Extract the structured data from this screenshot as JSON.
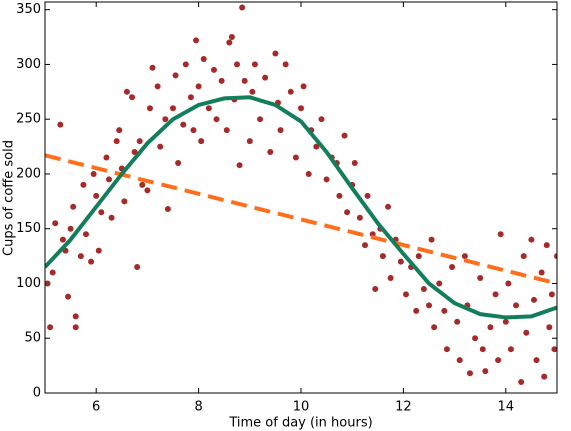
{
  "chart_data": {
    "type": "scatter",
    "xlabel": "Time of day (in hours)",
    "ylabel": "Cups of coffe sold",
    "xlim": [
      5,
      15
    ],
    "ylim": [
      0,
      357
    ],
    "xticks": [
      6,
      8,
      10,
      12,
      14
    ],
    "yticks": [
      0,
      50,
      100,
      150,
      200,
      250,
      300,
      350
    ],
    "series": [
      {
        "type": "scatter",
        "color": "#a52a2a",
        "x": [
          5.05,
          5.1,
          5.15,
          5.2,
          5.3,
          5.35,
          5.4,
          5.45,
          5.5,
          5.55,
          5.6,
          5.6,
          5.7,
          5.75,
          5.8,
          5.9,
          5.95,
          6.0,
          6.05,
          6.1,
          6.2,
          6.25,
          6.3,
          6.4,
          6.45,
          6.5,
          6.55,
          6.6,
          6.7,
          6.75,
          6.8,
          6.85,
          6.9,
          7.0,
          7.05,
          7.1,
          7.2,
          7.25,
          7.35,
          7.4,
          7.5,
          7.55,
          7.6,
          7.7,
          7.75,
          7.85,
          7.9,
          7.95,
          8.0,
          8.05,
          8.1,
          8.2,
          8.3,
          8.35,
          8.45,
          8.55,
          8.6,
          8.65,
          8.7,
          8.75,
          8.8,
          8.85,
          8.9,
          9.0,
          9.05,
          9.1,
          9.2,
          9.3,
          9.4,
          9.5,
          9.55,
          9.6,
          9.7,
          9.8,
          9.9,
          10.0,
          10.05,
          10.15,
          10.2,
          10.3,
          10.4,
          10.5,
          10.6,
          10.7,
          10.75,
          10.85,
          10.9,
          11.0,
          11.05,
          11.15,
          11.25,
          11.3,
          11.4,
          11.45,
          11.55,
          11.6,
          11.7,
          11.75,
          11.85,
          11.95,
          12.05,
          12.15,
          12.25,
          12.3,
          12.4,
          12.5,
          12.55,
          12.6,
          12.7,
          12.8,
          12.85,
          12.95,
          13.05,
          13.1,
          13.2,
          13.25,
          13.3,
          13.4,
          13.5,
          13.55,
          13.6,
          13.7,
          13.8,
          13.85,
          13.9,
          14.0,
          14.05,
          14.1,
          14.2,
          14.3,
          14.35,
          14.4,
          14.5,
          14.55,
          14.6,
          14.7,
          14.75,
          14.8,
          14.85,
          14.9,
          14.95,
          15.0
        ],
        "values": [
          100,
          60,
          110,
          155,
          245,
          140,
          130,
          88,
          150,
          170,
          70,
          60,
          125,
          190,
          145,
          120,
          200,
          180,
          130,
          165,
          215,
          195,
          160,
          230,
          240,
          205,
          175,
          275,
          270,
          220,
          115,
          230,
          190,
          185,
          260,
          297,
          280,
          225,
          250,
          168,
          260,
          290,
          210,
          245,
          300,
          270,
          240,
          322,
          280,
          230,
          305,
          260,
          295,
          250,
          285,
          240,
          320,
          325,
          268,
          300,
          208,
          352,
          285,
          230,
          275,
          300,
          250,
          288,
          220,
          310,
          265,
          240,
          300,
          275,
          215,
          260,
          280,
          200,
          240,
          225,
          250,
          195,
          215,
          210,
          180,
          235,
          165,
          190,
          210,
          160,
          135,
          180,
          145,
          95,
          150,
          125,
          170,
          105,
          140,
          120,
          90,
          115,
          75,
          125,
          95,
          80,
          140,
          60,
          100,
          75,
          40,
          115,
          65,
          30,
          125,
          80,
          18,
          50,
          105,
          40,
          20,
          60,
          90,
          30,
          145,
          65,
          100,
          40,
          80,
          10,
          125,
          55,
          140,
          85,
          30,
          110,
          15,
          135,
          60,
          90,
          40,
          125
        ]
      },
      {
        "type": "line",
        "color": "#ff6e1a",
        "dash": true,
        "x": [
          5,
          15
        ],
        "values": [
          217,
          100
        ]
      },
      {
        "type": "line",
        "color": "#137e5a",
        "dash": false,
        "x": [
          5,
          5.5,
          6,
          6.5,
          7,
          7.5,
          8,
          8.5,
          9,
          9.5,
          10,
          10.5,
          11,
          11.5,
          12,
          12.5,
          13,
          13.5,
          14,
          14.5,
          15
        ],
        "values": [
          115,
          140,
          170,
          200,
          228,
          250,
          263,
          269,
          270,
          263,
          248,
          220,
          187,
          155,
          127,
          100,
          82,
          72,
          69,
          70,
          78
        ]
      }
    ]
  }
}
